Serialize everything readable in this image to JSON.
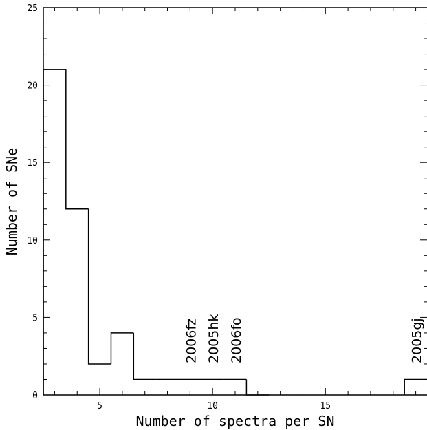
{
  "chart_data": {
    "type": "histogram",
    "title": "",
    "xlabel": "Number of spectra per SN",
    "ylabel": "Number of SNe",
    "xlim": [
      2.5,
      19.5
    ],
    "ylim": [
      0,
      25
    ],
    "xticks_major": [
      5,
      10,
      15
    ],
    "xticks_minor_step": 1,
    "yticks_major": [
      0,
      5,
      10,
      15,
      20,
      25
    ],
    "yticks_minor_step": 1,
    "grid": false,
    "bins": [
      {
        "x": 3,
        "count": 21
      },
      {
        "x": 4,
        "count": 12
      },
      {
        "x": 5,
        "count": 2
      },
      {
        "x": 6,
        "count": 4
      },
      {
        "x": 7,
        "count": 1
      },
      {
        "x": 8,
        "count": 1
      },
      {
        "x": 9,
        "count": 1
      },
      {
        "x": 10,
        "count": 1
      },
      {
        "x": 11,
        "count": 1
      },
      {
        "x": 12,
        "count": 0
      },
      {
        "x": 13,
        "count": 0
      },
      {
        "x": 14,
        "count": 0
      },
      {
        "x": 15,
        "count": 0
      },
      {
        "x": 16,
        "count": 0
      },
      {
        "x": 17,
        "count": 0
      },
      {
        "x": 18,
        "count": 0
      },
      {
        "x": 19,
        "count": 1
      }
    ],
    "annotations": [
      {
        "text": "2006fz",
        "x": 9
      },
      {
        "text": "2005hk",
        "x": 10
      },
      {
        "text": "2006fo",
        "x": 11
      },
      {
        "text": "2005gj",
        "x": 19
      }
    ]
  }
}
